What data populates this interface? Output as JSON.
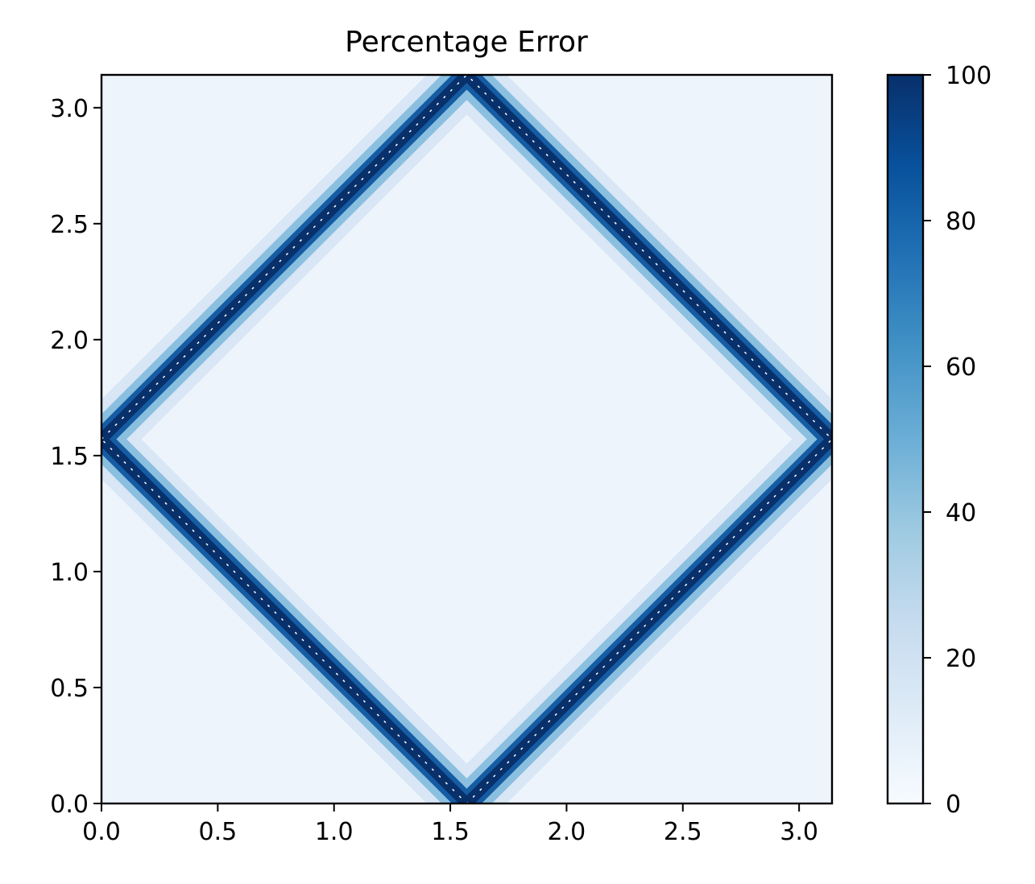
{
  "chart_data": {
    "type": "heatmap",
    "title": "Percentage Error",
    "xlabel": "",
    "ylabel": "",
    "xlim": [
      0,
      3.14159
    ],
    "ylim": [
      0,
      3.14159
    ],
    "xticks": [
      "0.0",
      "0.5",
      "1.0",
      "1.5",
      "2.0",
      "2.5",
      "3.0"
    ],
    "xtick_values": [
      0.0,
      0.5,
      1.0,
      1.5,
      2.0,
      2.5,
      3.0
    ],
    "yticks": [
      "0.0",
      "0.5",
      "1.0",
      "1.5",
      "2.0",
      "2.5",
      "3.0"
    ],
    "ytick_values": [
      0.0,
      0.5,
      1.0,
      1.5,
      2.0,
      2.5,
      3.0
    ],
    "colormap": "Blues",
    "colorbar": {
      "min": 0,
      "max": 100,
      "ticks": [
        "0",
        "20",
        "40",
        "60",
        "80",
        "100"
      ],
      "tick_values": [
        0,
        20,
        40,
        60,
        80,
        100
      ]
    },
    "pattern": "diamond-shaped high-error band along |x - 1.5708| + |y - 1.5708| = 1.5708, low error elsewhere",
    "peak_value": 100,
    "background_value": 5,
    "grid": false
  },
  "colors": {
    "low": "#f7fbff",
    "mid": "#6baed6",
    "high": "#08306b"
  }
}
